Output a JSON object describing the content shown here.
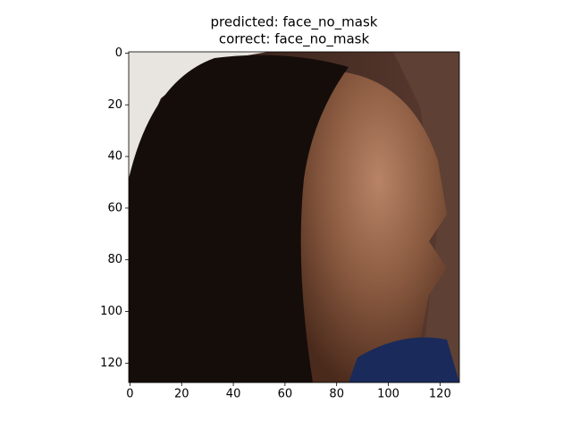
{
  "chart_data": {
    "type": "image",
    "title_lines": [
      "predicted: face_no_mask",
      "correct: face_no_mask"
    ],
    "xlim": [
      -0.5,
      127.5
    ],
    "ylim": [
      127.5,
      -0.5
    ],
    "xticks": [
      0,
      20,
      40,
      60,
      80,
      100,
      120
    ],
    "yticks": [
      0,
      20,
      40,
      60,
      80,
      100,
      120
    ]
  }
}
